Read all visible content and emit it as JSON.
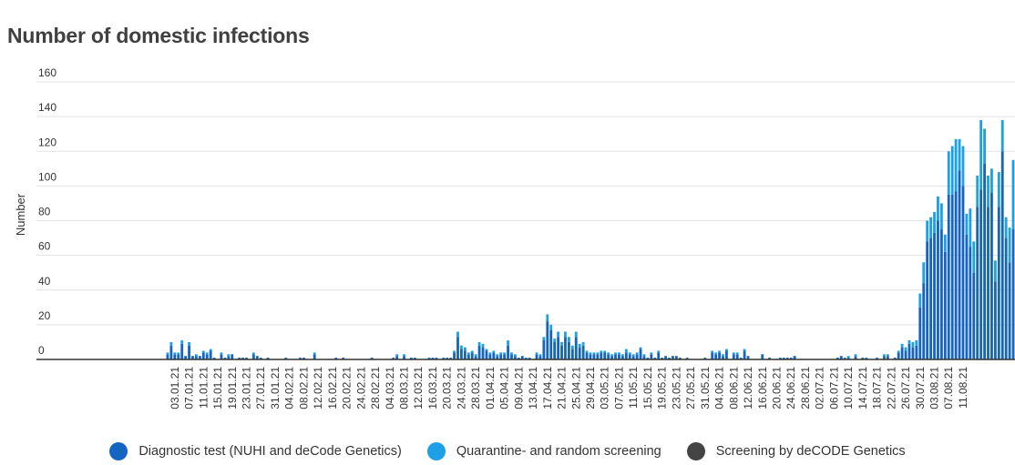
{
  "chart_data": {
    "type": "bar",
    "stacked": true,
    "title": "Number of domestic infections",
    "xlabel": "",
    "ylabel": "Number",
    "ylim": [
      0,
      160
    ],
    "yticks": [
      0,
      20,
      40,
      60,
      80,
      100,
      120,
      140,
      160
    ],
    "grid": true,
    "legend_position": "bottom-center",
    "x_start": "2021-01-01",
    "x_tick_labels": [
      "03.01.21",
      "07.01.21",
      "11.01.21",
      "15.01.21",
      "19.01.21",
      "23.01.21",
      "27.01.21",
      "31.01.21",
      "04.02.21",
      "08.02.21",
      "12.02.21",
      "16.02.21",
      "20.02.21",
      "24.02.21",
      "28.02.21",
      "04.03.21",
      "08.03.21",
      "12.03.21",
      "16.03.21",
      "20.03.21",
      "24.03.21",
      "28.03.21",
      "01.04.21",
      "05.04.21",
      "09.04.21",
      "13.04.21",
      "17.04.21",
      "21.04.21",
      "25.04.21",
      "29.04.21",
      "03.05.21",
      "07.05.21",
      "11.05.21",
      "15.05.21",
      "19.05.21",
      "23.05.21",
      "27.05.21",
      "31.05.21",
      "04.06.21",
      "08.06.21",
      "12.06.21",
      "16.06.21",
      "20.06.21",
      "24.06.21",
      "28.06.21",
      "02.07.21",
      "06.07.21",
      "10.07.21",
      "14.07.21",
      "18.07.21",
      "22.07.21",
      "26.07.21",
      "30.07.21",
      "03.08.21",
      "07.08.21",
      "11.08.21"
    ],
    "series": [
      {
        "name": "Diagnostic test (NUHI and deCode Genetics)",
        "color": "#1565c0",
        "values": [
          3,
          8,
          3,
          3,
          9,
          2,
          8,
          2,
          2,
          2,
          4,
          3,
          5,
          1,
          0,
          3,
          1,
          2,
          3,
          0,
          1,
          1,
          1,
          0,
          3,
          2,
          1,
          0,
          1,
          0,
          0,
          0,
          0,
          1,
          0,
          0,
          0,
          1,
          1,
          0,
          0,
          3,
          0,
          0,
          0,
          0,
          0,
          1,
          0,
          1,
          0,
          0,
          0,
          0,
          0,
          0,
          0,
          1,
          0,
          0,
          0,
          0,
          0,
          1,
          2,
          0,
          2,
          0,
          1,
          1,
          0,
          0,
          0,
          1,
          1,
          1,
          0,
          1,
          1,
          1,
          4,
          13,
          6,
          5,
          3,
          4,
          2,
          8,
          7,
          5,
          3,
          4,
          2,
          3,
          3,
          8,
          3,
          2,
          1,
          2,
          1,
          1,
          0,
          3,
          2,
          11,
          22,
          17,
          10,
          13,
          8,
          13,
          10,
          6,
          13,
          7,
          8,
          4,
          3,
          3,
          3,
          4,
          4,
          3,
          2,
          3,
          3,
          2,
          4,
          3,
          2,
          3,
          6,
          2,
          1,
          3,
          1,
          4,
          1,
          2,
          1,
          2,
          2,
          1,
          0,
          1,
          0,
          0,
          0,
          0,
          1,
          0,
          4,
          3,
          4,
          2,
          5,
          0,
          3,
          3,
          1,
          5,
          2,
          0,
          0,
          0,
          3,
          0,
          1,
          0,
          0,
          1,
          1,
          1,
          1,
          2,
          0,
          0,
          0,
          0,
          0,
          0,
          0,
          0,
          0,
          0,
          0,
          1,
          2,
          1,
          1,
          0,
          2,
          0,
          1,
          1,
          0,
          0,
          1,
          0,
          2,
          2,
          0,
          1,
          4,
          7,
          5,
          9,
          7,
          8,
          30,
          44,
          68,
          70,
          73,
          80,
          75,
          62,
          95,
          95,
          97,
          109,
          100,
          72,
          65,
          50,
          88,
          98,
          113,
          88,
          96,
          45,
          88,
          120,
          70,
          56,
          75
        ],
        "quar": [
          1,
          2,
          1,
          1,
          2,
          0,
          2,
          0,
          1,
          0,
          1,
          1,
          1,
          0,
          0,
          1,
          0,
          1,
          0,
          0,
          0,
          0,
          0,
          0,
          1,
          0,
          0,
          0,
          0,
          0,
          0,
          0,
          0,
          0,
          0,
          0,
          0,
          0,
          0,
          0,
          0,
          1,
          0,
          0,
          0,
          0,
          0,
          0,
          0,
          0,
          0,
          0,
          0,
          0,
          0,
          0,
          0,
          0,
          0,
          0,
          0,
          0,
          0,
          0,
          1,
          0,
          1,
          0,
          0,
          0,
          0,
          0,
          0,
          0,
          0,
          0,
          0,
          0,
          0,
          0,
          1,
          3,
          2,
          2,
          1,
          1,
          1,
          2,
          2,
          1,
          1,
          1,
          1,
          1,
          1,
          3,
          1,
          1,
          0,
          0,
          0,
          0,
          0,
          1,
          1,
          2,
          4,
          3,
          2,
          3,
          2,
          3,
          3,
          2,
          3,
          2,
          2,
          1,
          1,
          1,
          1,
          1,
          1,
          1,
          1,
          1,
          1,
          1,
          2,
          1,
          1,
          1,
          1,
          1,
          0,
          1,
          0,
          1,
          0,
          0,
          0,
          0,
          0,
          0,
          0,
          0,
          0,
          0,
          0,
          0,
          0,
          0,
          1,
          1,
          1,
          1,
          1,
          0,
          1,
          1,
          0,
          1,
          0,
          0,
          0,
          0,
          0,
          0,
          0,
          0,
          0,
          0,
          0,
          0,
          0,
          0,
          0,
          0,
          0,
          0,
          0,
          0,
          0,
          0,
          0,
          0,
          0,
          0,
          0,
          0,
          1,
          0,
          1,
          0,
          0,
          0,
          0,
          0,
          0,
          0,
          1,
          1,
          0,
          0,
          1,
          2,
          2,
          2,
          3,
          3,
          8,
          12,
          12,
          12,
          12,
          14,
          15,
          10,
          25,
          28,
          30,
          18,
          23,
          12,
          22,
          18,
          18,
          40,
          20,
          18,
          14,
          12,
          20,
          18,
          12,
          20,
          40
        ]
      },
      {
        "name": "Quarantine- and random screening",
        "color": "#1ea0e6"
      },
      {
        "name": "Screening by deCODE Genetics",
        "color": "#444444"
      }
    ]
  }
}
